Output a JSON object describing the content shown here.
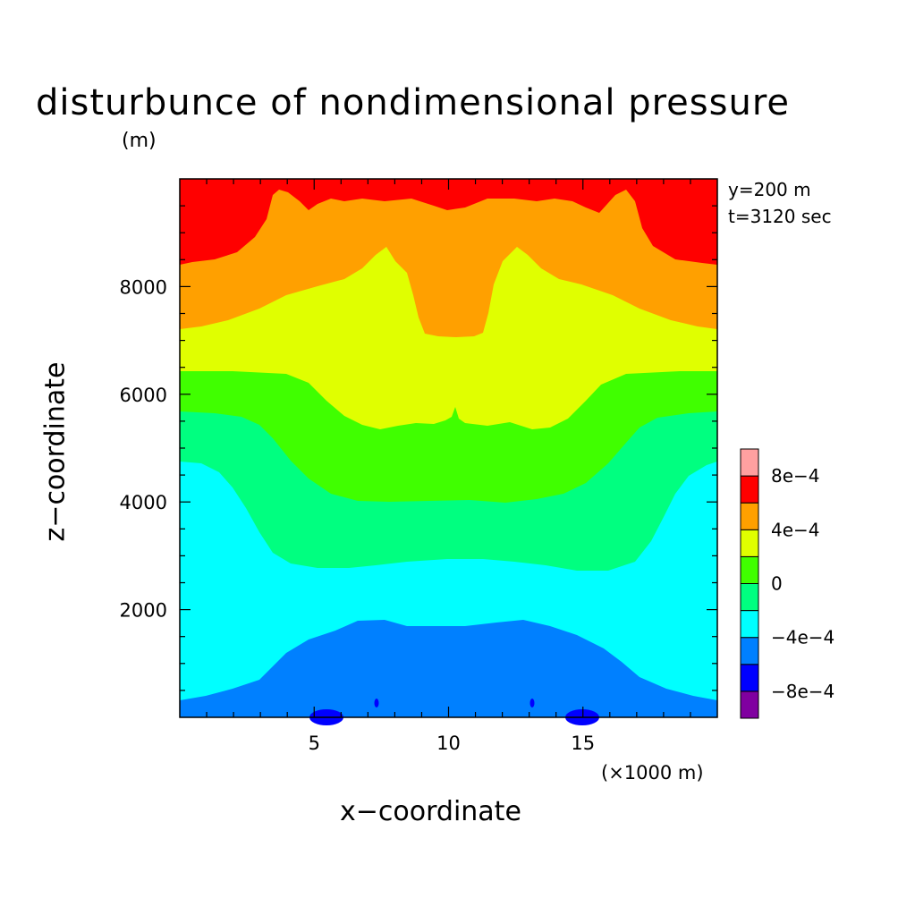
{
  "chart_data": {
    "type": "contour",
    "title": "disturbunce of nondimensional pressure",
    "ylabel_unit": "(m)",
    "xlabel": "x−coordinate",
    "ylabel": "z−coordinate",
    "xunit": "(×1000 m)",
    "annotations": [
      "y=200 m",
      "t=3120 sec"
    ],
    "xlim": [
      0,
      20
    ],
    "ylim": [
      0,
      10000
    ],
    "xticks": [
      5,
      10,
      15
    ],
    "xtick_labels": [
      "5",
      "10",
      "15"
    ],
    "yticks": [
      2000,
      4000,
      6000,
      8000
    ],
    "ytick_labels": [
      "2000",
      "4000",
      "6000",
      "8000"
    ],
    "colorbar": {
      "levels": [
        -0.001,
        -0.0008,
        -0.0006,
        -0.0004,
        -0.0002,
        0,
        0.0002,
        0.0004,
        0.0006,
        0.0008,
        0.001
      ],
      "labels": [
        "8e−4",
        "4e−4",
        "0",
        "−4e−4",
        "−8e−4"
      ],
      "colors": [
        "#8000a0",
        "#0000ff",
        "#0080ff",
        "#00ffff",
        "#00ff80",
        "#40ff00",
        "#e0ff00",
        "#ffa000",
        "#ff0000",
        "#ffa0a0"
      ]
    }
  }
}
